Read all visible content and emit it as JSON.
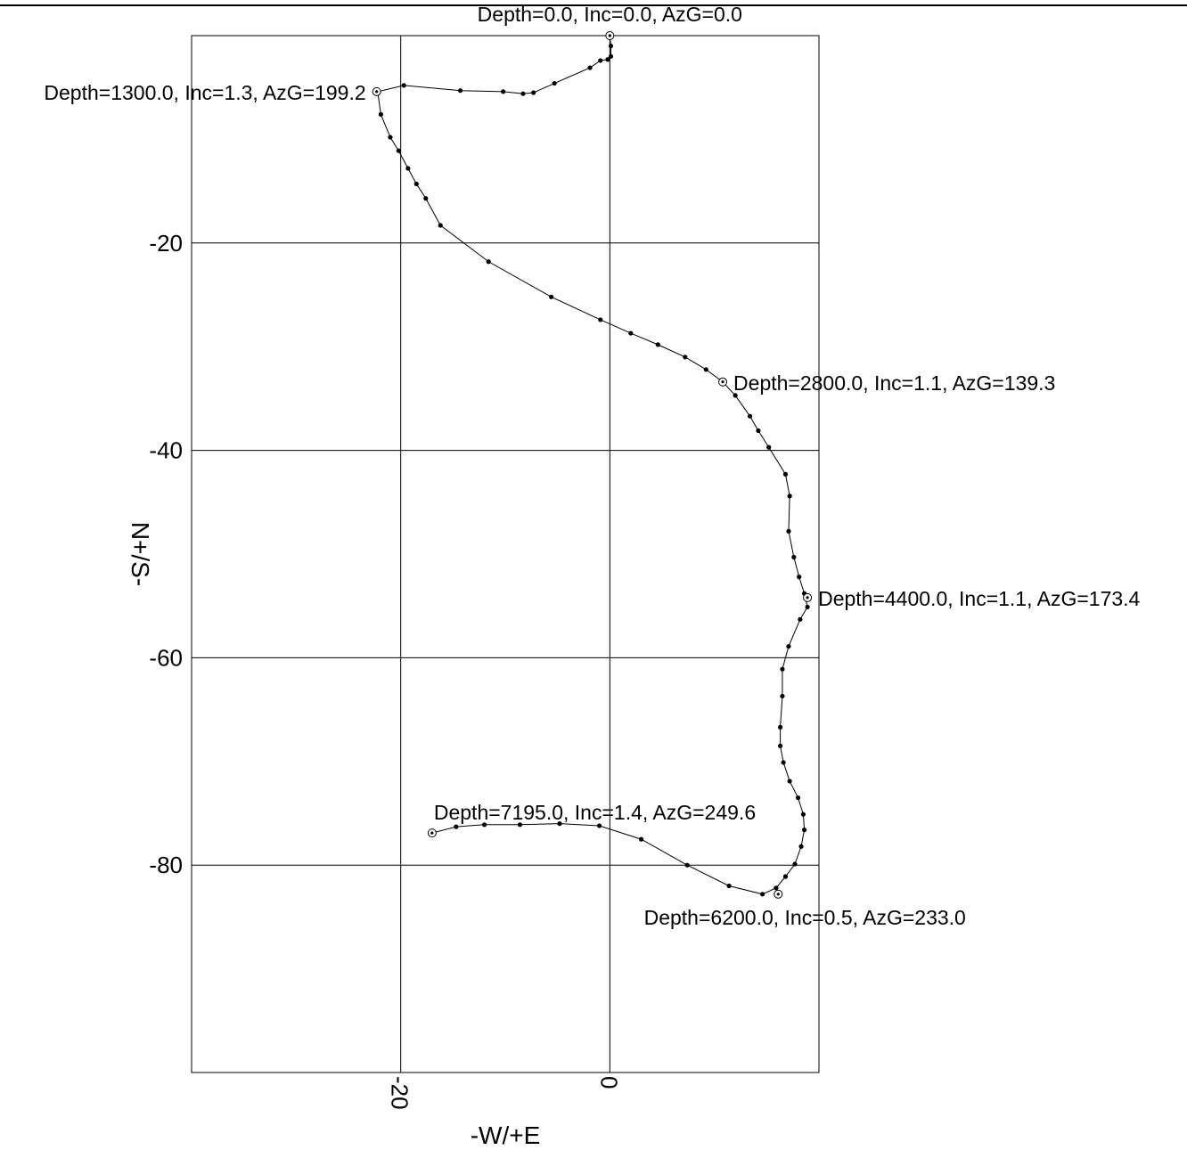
{
  "chart_data": {
    "type": "scatter",
    "title": "",
    "xlabel": "-W/+E",
    "ylabel": "N+/S-",
    "xlim": [
      -40,
      20
    ],
    "ylim": [
      -100,
      0
    ],
    "x_ticks": [
      -20,
      0
    ],
    "x_tick_labels": [
      "-20",
      "0"
    ],
    "y_ticks": [
      -20,
      -40,
      -60,
      -80
    ],
    "y_tick_labels": [
      "-20",
      "-40",
      "-60",
      "-80"
    ],
    "grid": true,
    "series": [
      {
        "x": [
          0.0,
          0.1,
          0.1,
          -0.2,
          -0.9,
          -1.9,
          -5.3,
          -7.3,
          -8.3,
          -10.2,
          -14.3,
          -19.7,
          -22.2,
          -21.9,
          -21.0,
          -20.2,
          -19.3,
          -18.5,
          -17.6,
          -16.2,
          -11.6,
          -5.6,
          -0.9,
          2.0,
          4.6,
          7.2,
          9.2,
          10.8,
          12.0,
          13.4,
          14.2,
          15.2,
          16.8,
          17.2,
          17.1,
          17.6,
          18.1,
          18.6,
          18.9,
          18.2,
          17.1,
          16.5,
          16.5,
          16.3,
          16.3,
          16.6,
          17.2,
          18.0,
          18.5,
          18.6,
          18.3,
          17.7,
          16.8,
          15.9,
          14.6,
          11.4,
          7.4,
          3.0,
          -1.0,
          -4.8,
          -8.6,
          -12.0,
          -14.7,
          -17.0
        ],
        "y": [
          0.0,
          -1.0,
          -2.0,
          -2.3,
          -2.4,
          -3.1,
          -4.6,
          -5.5,
          -5.6,
          -5.4,
          -5.3,
          -4.8,
          -5.4,
          -7.6,
          -9.8,
          -11.1,
          -12.8,
          -14.3,
          -15.7,
          -18.3,
          -21.8,
          -25.2,
          -27.4,
          -28.7,
          -29.8,
          -31.0,
          -32.2,
          -33.4,
          -34.7,
          -36.7,
          -38.1,
          -39.7,
          -42.3,
          -44.4,
          -47.8,
          -50.3,
          -52.2,
          -53.8,
          -55.1,
          -56.3,
          -58.9,
          -61.1,
          -63.7,
          -66.7,
          -68.5,
          -70.1,
          -71.9,
          -73.5,
          -75.1,
          -76.6,
          -78.2,
          -79.9,
          -81.1,
          -82.2,
          -82.8,
          -82.0,
          -80.0,
          -77.5,
          -76.2,
          -76.0,
          -76.1,
          -76.1,
          -76.3,
          -76.9
        ]
      }
    ],
    "stations": [
      {
        "x": 0.0,
        "y": 0.0,
        "label": "Depth=0.0, Inc=0.0, AzG=0.0"
      },
      {
        "x": -22.3,
        "y": -5.4,
        "label": "Depth=1300.0, Inc=1.3, AzG=199.2"
      },
      {
        "x": 10.8,
        "y": -33.4,
        "label": "Depth=2800.0, Inc=1.1, AzG=139.3"
      },
      {
        "x": 18.9,
        "y": -54.2,
        "label": "Depth=4400.0, Inc=1.1, AzG=173.4"
      },
      {
        "x": 16.1,
        "y": -82.8,
        "label": "Depth=6200.0, Inc=0.5, AzG=233.0"
      },
      {
        "x": -17.0,
        "y": -76.9,
        "label": "Depth=7195.0, Inc=1.4, AzG=249.6"
      }
    ]
  }
}
